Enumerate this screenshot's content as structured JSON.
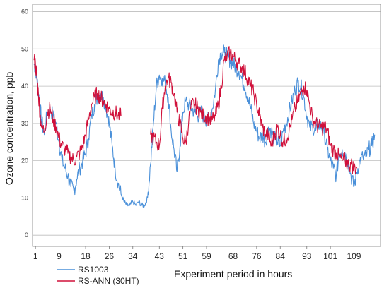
{
  "chart_data": {
    "type": "line",
    "title": "",
    "xlabel": "Experiment period in hours",
    "ylabel": "Ozone concentration, ppb",
    "xlim": [
      0,
      118
    ],
    "ylim": [
      -3,
      62
    ],
    "yticks": [
      0,
      10,
      20,
      30,
      40,
      50,
      60
    ],
    "xticks": [
      1,
      9,
      18,
      26,
      34,
      43,
      51,
      59,
      68,
      76,
      84,
      93,
      101,
      109
    ],
    "grid": "horizontal",
    "legend": "bottom-left",
    "colors": {
      "RS1003": "#4a90d9",
      "RS-ANN (30HT)": "#d0103a"
    },
    "series": [
      {
        "name": "RS1003",
        "x": [
          0.5,
          1,
          1.5,
          2,
          2.5,
          3,
          4,
          5,
          6,
          7,
          8,
          9,
          10,
          11,
          12,
          13,
          14,
          15,
          16,
          17,
          18,
          19,
          20,
          21,
          22,
          23,
          24,
          25,
          26,
          27,
          28,
          29,
          30,
          31,
          32,
          33,
          34,
          35,
          36,
          37,
          38,
          39,
          40,
          41,
          42,
          43,
          44,
          45,
          46,
          47,
          48,
          49,
          50,
          51,
          52,
          53,
          54,
          55,
          56,
          57,
          58,
          59,
          60,
          61,
          62,
          63,
          64,
          65,
          66,
          67,
          68,
          69,
          70,
          71,
          72,
          73,
          74,
          75,
          76,
          77,
          78,
          79,
          80,
          81,
          82,
          83,
          84,
          85,
          86,
          87,
          88,
          89,
          90,
          91,
          92,
          93,
          94,
          95,
          96,
          97,
          98,
          99,
          100,
          101,
          102,
          103,
          104,
          105,
          106,
          107,
          108,
          109,
          110,
          111,
          112,
          113,
          114,
          115,
          116
        ],
        "values": [
          46,
          45,
          42,
          38,
          35,
          31,
          27,
          33,
          34,
          32,
          30,
          25,
          20,
          18,
          16,
          13,
          12,
          15,
          18,
          20,
          22,
          26,
          32,
          35,
          37,
          38,
          37,
          34,
          30,
          24,
          18,
          14,
          11,
          9,
          8,
          8,
          9,
          8,
          9,
          8,
          8,
          10,
          19,
          30,
          40,
          43,
          42,
          41,
          37,
          28,
          23,
          17,
          24,
          33,
          36,
          35,
          34,
          33,
          32,
          33,
          32,
          31,
          31,
          34,
          39,
          47,
          49,
          49,
          48,
          47,
          46,
          45,
          44,
          42,
          40,
          37,
          34,
          30,
          28,
          26,
          27,
          25,
          29,
          28,
          26,
          25,
          24,
          28,
          30,
          33,
          36,
          39,
          41,
          40,
          37,
          32,
          29,
          29,
          28,
          30,
          29,
          27,
          23,
          20,
          18,
          16,
          22,
          23,
          22,
          20,
          16,
          13,
          17,
          20,
          21,
          21,
          23,
          24,
          27
        ],
        "style": "noisy"
      },
      {
        "name": "RS-ANN (30HT)",
        "x": [
          0.5,
          1,
          1.5,
          2,
          2.5,
          3,
          4,
          5,
          6,
          7,
          8,
          9,
          10,
          11,
          12,
          13,
          14,
          15,
          16,
          17,
          18,
          19,
          20,
          21,
          22,
          23,
          24,
          25,
          26,
          27,
          28,
          29,
          30
        ],
        "values": [
          47,
          46,
          42,
          38,
          33,
          29,
          28,
          33,
          34,
          31,
          29,
          26,
          24,
          23,
          22,
          21,
          20,
          21,
          22,
          24,
          27,
          31,
          35,
          37,
          38,
          37,
          36,
          35,
          34,
          33,
          33,
          32,
          32
        ],
        "style": "noisy"
      },
      {
        "name": "RS-ANN (30HT)",
        "x": [
          40,
          41,
          42,
          43,
          44,
          45,
          46,
          47,
          48,
          49,
          50,
          51,
          52,
          53,
          54,
          55,
          56,
          57,
          58,
          59,
          60,
          61,
          62,
          63,
          64,
          65,
          66,
          67,
          68,
          69,
          70,
          71,
          72,
          73,
          74,
          75,
          76,
          77,
          78,
          79,
          80,
          81,
          82,
          83,
          84,
          85,
          86,
          87,
          88,
          89,
          90,
          91,
          92,
          93,
          94,
          95,
          96,
          97,
          98,
          99,
          100,
          101,
          102,
          103,
          104,
          105,
          106,
          107,
          108,
          109,
          110
        ],
        "values": [
          27,
          26,
          25,
          24,
          34,
          40,
          42,
          41,
          38,
          33,
          30,
          26,
          25,
          31,
          35,
          35,
          34,
          33,
          32,
          32,
          31,
          31,
          32,
          35,
          40,
          47,
          48,
          49,
          48,
          47,
          46,
          45,
          44,
          42,
          40,
          38,
          35,
          32,
          29,
          27,
          27,
          24,
          27,
          29,
          27,
          25,
          26,
          28,
          31,
          34,
          36,
          38,
          40,
          39,
          35,
          31,
          30,
          29,
          29,
          29,
          28,
          24,
          23,
          22,
          21,
          20,
          20,
          19,
          19,
          18,
          18
        ],
        "style": "noisy"
      }
    ]
  }
}
